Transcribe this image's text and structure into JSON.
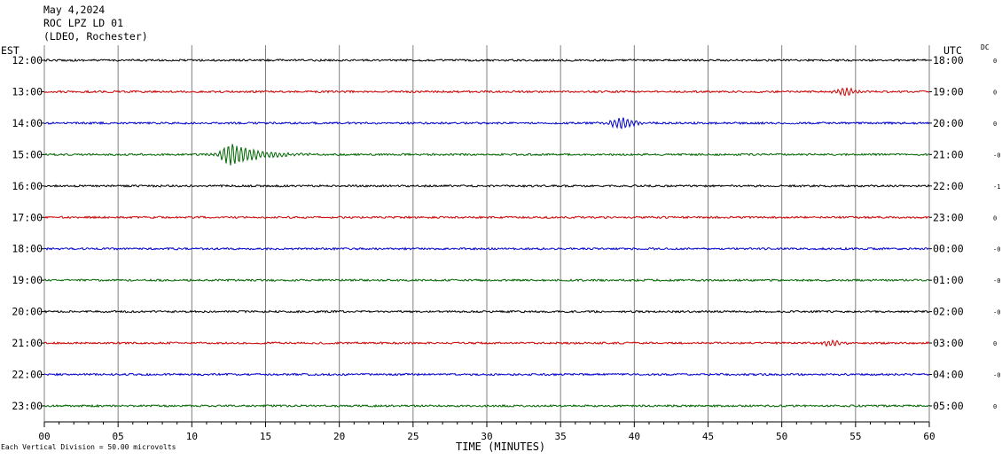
{
  "header": {
    "date": "May 4,2024",
    "station": "ROC LPZ LD 01",
    "network": "(LDEO, Rochester)"
  },
  "left_axis_label": "EST",
  "right_axis_label": "UTC",
  "dc_label": "DC",
  "footer_note": "Each Vertical Division =   50.00 microvolts",
  "chart_data": {
    "type": "line",
    "title": "",
    "xlabel": "TIME (MINUTES)",
    "ylabel": "",
    "xlim": [
      0,
      60
    ],
    "x_ticks": [
      "00",
      "05",
      "10",
      "15",
      "20",
      "25",
      "30",
      "35",
      "40",
      "45",
      "50",
      "55",
      "60"
    ],
    "grid": "vertical every 5 minutes",
    "series": [
      {
        "est": "12:00",
        "utc": "18:00",
        "dc": "0",
        "color": "#000000",
        "events": []
      },
      {
        "est": "13:00",
        "utc": "19:00",
        "dc": "0",
        "color": "#cc0000",
        "events": [
          {
            "minute": 54.5,
            "amp": 4
          }
        ]
      },
      {
        "est": "14:00",
        "utc": "20:00",
        "dc": "0",
        "color": "#0000cc",
        "events": [
          {
            "minute": 39.3,
            "amp": 7
          }
        ]
      },
      {
        "est": "15:00",
        "utc": "21:00",
        "dc": "-0",
        "color": "#006600",
        "events": [
          {
            "minute": 12.8,
            "amp": 12
          }
        ]
      },
      {
        "est": "16:00",
        "utc": "22:00",
        "dc": "-1",
        "color": "#000000",
        "events": []
      },
      {
        "est": "17:00",
        "utc": "23:00",
        "dc": "0",
        "color": "#cc0000",
        "events": []
      },
      {
        "est": "18:00",
        "utc": "00:00",
        "dc": "-0",
        "color": "#0000cc",
        "events": []
      },
      {
        "est": "19:00",
        "utc": "01:00",
        "dc": "-0",
        "color": "#006600",
        "events": []
      },
      {
        "est": "20:00",
        "utc": "02:00",
        "dc": "-0",
        "color": "#000000",
        "events": []
      },
      {
        "est": "21:00",
        "utc": "03:00",
        "dc": "0",
        "color": "#cc0000",
        "events": [
          {
            "minute": 53.5,
            "amp": 3
          }
        ]
      },
      {
        "est": "22:00",
        "utc": "04:00",
        "dc": "-0",
        "color": "#0000cc",
        "events": []
      },
      {
        "est": "23:00",
        "utc": "05:00",
        "dc": "0",
        "color": "#006600",
        "events": []
      }
    ]
  }
}
